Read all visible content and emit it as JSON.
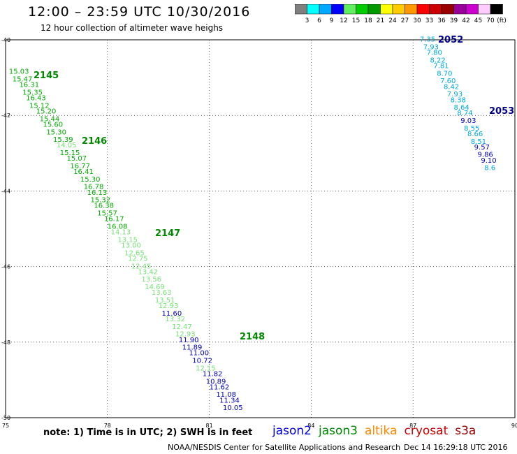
{
  "header": {
    "title": "12:00 – 23:59 UTC 10/30/2016",
    "subtitle": "12 hour collection of altimeter wave heighs"
  },
  "colorbar": {
    "unit": "(ft)",
    "labels": [
      "3",
      "6",
      "9",
      "12",
      "15",
      "18",
      "21",
      "24",
      "27",
      "30",
      "33",
      "36",
      "39",
      "42",
      "45",
      "70"
    ],
    "colors": [
      "#7f7f7f",
      "#00ffff",
      "#00a8ff",
      "#0000ff",
      "#5fef5f",
      "#00cc00",
      "#009900",
      "#ffff00",
      "#ffcc00",
      "#ff9900",
      "#ff0000",
      "#cc0000",
      "#990000",
      "#990099",
      "#cc00cc",
      "#ffccff",
      "#000000"
    ]
  },
  "axes": {
    "x_ticks": [
      "75",
      "78",
      "81",
      "84",
      "87",
      "90"
    ],
    "y_ticks": [
      "-40",
      "-42",
      "-44",
      "-46",
      "-48",
      "-50"
    ]
  },
  "tracks": [
    {
      "pass": "2145",
      "color": "#008800"
    },
    {
      "pass": "2146",
      "color": "#008800"
    },
    {
      "pass": "2147",
      "color": "#008800"
    },
    {
      "pass": "2148",
      "color": "#008800"
    },
    {
      "pass": "2052",
      "color": "#00008b"
    },
    {
      "pass": "2053",
      "color": "#00008b"
    }
  ],
  "chart_data": {
    "type": "scatter",
    "xlim": [
      75,
      90
    ],
    "ylim": [
      -50,
      -40
    ],
    "grid": true,
    "series": [
      {
        "name": "jason3",
        "points": [
          {
            "x": 75.1,
            "y": -40.9,
            "v": "15.03",
            "c": "#00aa00"
          },
          {
            "x": 75.2,
            "y": -41.1,
            "v": "15.47",
            "c": "#00aa00"
          },
          {
            "x": 75.4,
            "y": -41.25,
            "v": "16.31",
            "c": "#00aa00"
          },
          {
            "x": 75.5,
            "y": -41.45,
            "v": "15.35",
            "c": "#00aa00"
          },
          {
            "x": 75.6,
            "y": -41.6,
            "v": "16.43",
            "c": "#00aa00"
          },
          {
            "x": 75.7,
            "y": -41.8,
            "v": "15.12",
            "c": "#00aa00"
          },
          {
            "x": 75.9,
            "y": -41.95,
            "v": "15.20",
            "c": "#00aa00"
          },
          {
            "x": 76.0,
            "y": -42.15,
            "v": "15.44",
            "c": "#00aa00"
          },
          {
            "x": 76.1,
            "y": -42.3,
            "v": "15.60",
            "c": "#00aa00"
          },
          {
            "x": 76.2,
            "y": -42.5,
            "v": "15.30",
            "c": "#00aa00"
          },
          {
            "x": 76.4,
            "y": -42.7,
            "v": "15.39",
            "c": "#00aa00"
          },
          {
            "x": 76.5,
            "y": -42.85,
            "v": "14.05",
            "c": "#77e077"
          },
          {
            "x": 76.6,
            "y": -43.05,
            "v": "15.15",
            "c": "#00aa00"
          },
          {
            "x": 76.8,
            "y": -43.2,
            "v": "15.07",
            "c": "#00aa00"
          },
          {
            "x": 76.9,
            "y": -43.4,
            "v": "16.77",
            "c": "#00aa00"
          },
          {
            "x": 77.0,
            "y": -43.55,
            "v": "16.41",
            "c": "#00aa00"
          },
          {
            "x": 77.2,
            "y": -43.75,
            "v": "15.30",
            "c": "#00aa00"
          },
          {
            "x": 77.3,
            "y": -43.95,
            "v": "16.78",
            "c": "#00aa00"
          },
          {
            "x": 77.4,
            "y": -44.1,
            "v": "16.13",
            "c": "#00aa00"
          },
          {
            "x": 77.5,
            "y": -44.3,
            "v": "15.32",
            "c": "#00aa00"
          },
          {
            "x": 77.6,
            "y": -44.45,
            "v": "16.38",
            "c": "#00aa00"
          },
          {
            "x": 77.7,
            "y": -44.65,
            "v": "15.57",
            "c": "#00aa00"
          },
          {
            "x": 77.9,
            "y": -44.8,
            "v": "16.17",
            "c": "#00aa00"
          },
          {
            "x": 78.0,
            "y": -45.0,
            "v": "16.08",
            "c": "#00aa00"
          },
          {
            "x": 78.1,
            "y": -45.15,
            "v": "14.13",
            "c": "#77e077"
          },
          {
            "x": 78.3,
            "y": -45.35,
            "v": "13.15",
            "c": "#77e077"
          },
          {
            "x": 78.4,
            "y": -45.5,
            "v": "13.00",
            "c": "#77e077"
          },
          {
            "x": 78.5,
            "y": -45.7,
            "v": "12.65",
            "c": "#77e077"
          },
          {
            "x": 78.6,
            "y": -45.85,
            "v": "12.75",
            "c": "#77e077"
          },
          {
            "x": 78.7,
            "y": -46.05,
            "v": "12.45",
            "c": "#77e077"
          },
          {
            "x": 78.9,
            "y": -46.2,
            "v": "13.42",
            "c": "#77e077"
          },
          {
            "x": 79.0,
            "y": -46.4,
            "v": "13.56",
            "c": "#77e077"
          },
          {
            "x": 79.1,
            "y": -46.6,
            "v": "14.69",
            "c": "#77e077"
          },
          {
            "x": 79.3,
            "y": -46.75,
            "v": "13.63",
            "c": "#77e077"
          },
          {
            "x": 79.4,
            "y": -46.95,
            "v": "13.51",
            "c": "#77e077"
          },
          {
            "x": 79.5,
            "y": -47.1,
            "v": "12.93",
            "c": "#77e077"
          },
          {
            "x": 79.6,
            "y": -47.3,
            "v": "11.60",
            "c": "#0000bb"
          },
          {
            "x": 79.7,
            "y": -47.45,
            "v": "13.32",
            "c": "#77e077"
          },
          {
            "x": 79.9,
            "y": -47.65,
            "v": "12.47",
            "c": "#77e077"
          },
          {
            "x": 80.0,
            "y": -47.85,
            "v": "12.93",
            "c": "#77e077"
          },
          {
            "x": 80.1,
            "y": -48.0,
            "v": "11.90",
            "c": "#0000bb"
          },
          {
            "x": 80.2,
            "y": -48.2,
            "v": "11.89",
            "c": "#0000bb"
          },
          {
            "x": 80.4,
            "y": -48.35,
            "v": "11.00",
            "c": "#0000bb"
          },
          {
            "x": 80.5,
            "y": -48.55,
            "v": "10.72",
            "c": "#0000bb"
          },
          {
            "x": 80.6,
            "y": -48.75,
            "v": "12.15",
            "c": "#77e077"
          },
          {
            "x": 80.8,
            "y": -48.9,
            "v": "11.82",
            "c": "#0000bb"
          },
          {
            "x": 80.9,
            "y": -49.1,
            "v": "10.89",
            "c": "#0000bb"
          },
          {
            "x": 81.0,
            "y": -49.25,
            "v": "11.62",
            "c": "#0000bb"
          },
          {
            "x": 81.2,
            "y": -49.45,
            "v": "11.08",
            "c": "#0000bb"
          },
          {
            "x": 81.3,
            "y": -49.6,
            "v": "11.34",
            "c": "#0000bb"
          },
          {
            "x": 81.4,
            "y": -49.8,
            "v": "10.05",
            "c": "#0000bb"
          }
        ]
      },
      {
        "name": "jason2",
        "points": [
          {
            "x": 87.2,
            "y": -40.05,
            "v": "7.35",
            "c": "#00aadd"
          },
          {
            "x": 87.3,
            "y": -40.25,
            "v": "7.93",
            "c": "#00aadd"
          },
          {
            "x": 87.4,
            "y": -40.4,
            "v": "7.80",
            "c": "#00aadd"
          },
          {
            "x": 87.5,
            "y": -40.6,
            "v": "8.22",
            "c": "#00aadd"
          },
          {
            "x": 87.6,
            "y": -40.75,
            "v": "7.81",
            "c": "#00aadd"
          },
          {
            "x": 87.7,
            "y": -40.95,
            "v": "8.70",
            "c": "#00aadd"
          },
          {
            "x": 87.8,
            "y": -41.15,
            "v": "7.60",
            "c": "#00aadd"
          },
          {
            "x": 87.9,
            "y": -41.3,
            "v": "8.42",
            "c": "#00aadd"
          },
          {
            "x": 88.0,
            "y": -41.5,
            "v": "7.93",
            "c": "#00aadd"
          },
          {
            "x": 88.1,
            "y": -41.65,
            "v": "8.38",
            "c": "#00aadd"
          },
          {
            "x": 88.2,
            "y": -41.85,
            "v": "8.64",
            "c": "#00aadd"
          },
          {
            "x": 88.3,
            "y": -42.0,
            "v": "8.74",
            "c": "#00aadd"
          },
          {
            "x": 88.4,
            "y": -42.2,
            "v": "9.03",
            "c": "#0000bb"
          },
          {
            "x": 88.5,
            "y": -42.4,
            "v": "8.55",
            "c": "#00aadd"
          },
          {
            "x": 88.6,
            "y": -42.55,
            "v": "8.66",
            "c": "#00aadd"
          },
          {
            "x": 88.7,
            "y": -42.75,
            "v": "8.51",
            "c": "#00aadd"
          },
          {
            "x": 88.8,
            "y": -42.9,
            "v": "9.57",
            "c": "#0000bb"
          },
          {
            "x": 88.9,
            "y": -43.1,
            "v": "9.86",
            "c": "#0000bb"
          },
          {
            "x": 89.0,
            "y": -43.25,
            "v": "9.10",
            "c": "#0000bb"
          },
          {
            "x": 89.1,
            "y": -43.45,
            "v": "8.6",
            "c": "#00aadd"
          }
        ]
      }
    ]
  },
  "note": "note: 1) Time is in UTC; 2) SWH is in feet",
  "legend": [
    {
      "label": "jason2",
      "color": "#0000dd"
    },
    {
      "label": "jason3",
      "color": "#008800"
    },
    {
      "label": "altika",
      "color": "#ff8800"
    },
    {
      "label": "cryosat",
      "color": "#cc0000"
    },
    {
      "label": "s3a",
      "color": "#990000"
    }
  ],
  "footer": {
    "left": "NOAA/NESDIS Center for Satellite Applications and Research",
    "right": "Dec 14 16:29:18 UTC 2016"
  }
}
